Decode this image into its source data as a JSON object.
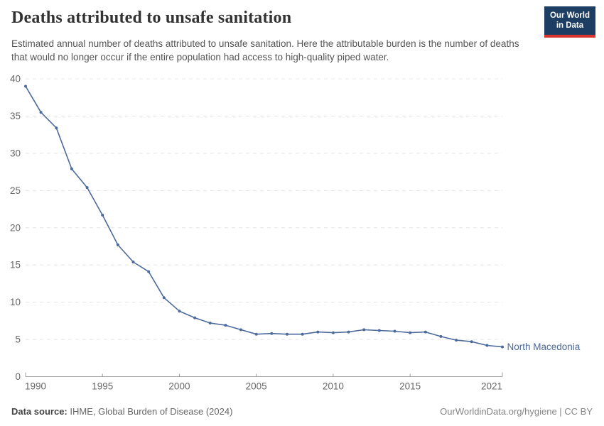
{
  "header": {
    "title": "Deaths attributed to unsafe sanitation",
    "subtitle": "Estimated annual number of deaths attributed to unsafe sanitation. Here the attributable burden is the number of deaths that would no longer occur if the entire population had access to high-quality piped water.",
    "logo": {
      "line1": "Our World",
      "line2": "in Data"
    }
  },
  "chart_data": {
    "type": "line",
    "title": "Deaths attributed to unsafe sanitation",
    "xlabel": "",
    "ylabel": "",
    "xlim": [
      1990,
      2021
    ],
    "ylim": [
      0,
      40
    ],
    "x_ticks": [
      1990,
      1995,
      2000,
      2005,
      2010,
      2015,
      2021
    ],
    "y_ticks": [
      0,
      5,
      10,
      15,
      20,
      25,
      30,
      35,
      40
    ],
    "grid": "horizontal-dashed",
    "legend_position": "end-of-line-label",
    "series": [
      {
        "name": "North Macedonia",
        "color": "#4c6a9c",
        "x": [
          1990,
          1991,
          1992,
          1993,
          1994,
          1995,
          1996,
          1997,
          1998,
          1999,
          2000,
          2001,
          2002,
          2003,
          2004,
          2005,
          2006,
          2007,
          2008,
          2009,
          2010,
          2011,
          2012,
          2013,
          2014,
          2015,
          2016,
          2017,
          2018,
          2019,
          2020,
          2021
        ],
        "values": [
          39.0,
          35.5,
          33.4,
          27.9,
          25.4,
          21.7,
          17.7,
          15.4,
          14.1,
          10.6,
          8.8,
          7.9,
          7.2,
          6.9,
          6.3,
          5.7,
          5.8,
          5.7,
          5.7,
          6.0,
          5.9,
          6.0,
          6.3,
          6.2,
          6.1,
          5.9,
          6.0,
          5.4,
          4.9,
          4.7,
          4.2,
          4.0
        ]
      }
    ]
  },
  "footer": {
    "source_label": "Data source:",
    "source_text": "IHME, Global Burden of Disease (2024)",
    "attribution": "OurWorldinData.org/hygiene | CC BY"
  },
  "colors": {
    "line": "#4c6a9c",
    "logo_navy": "#1d3d63",
    "logo_red": "#d9352c",
    "gridline": "#e4e4e4",
    "axis": "#9e9e9e",
    "tick_text": "#666666"
  }
}
